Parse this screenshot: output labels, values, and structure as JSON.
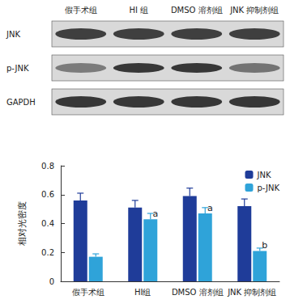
{
  "blot": {
    "columns": [
      "假手术组",
      "HI 组",
      "DMSO 溶剂组",
      "JNK 抑制剂组"
    ],
    "rows": [
      "JNK",
      "p-JNK",
      "GAPDH"
    ]
  },
  "chart_data": {
    "type": "bar",
    "y_label": "相对光密度",
    "categories": [
      "假手术组",
      "HI组",
      "DMSO 溶剂组",
      "JNK 抑制剂组"
    ],
    "series": [
      {
        "name": "JNK",
        "color": "#1f3c99",
        "values": [
          0.56,
          0.51,
          0.59,
          0.52
        ],
        "errors": [
          0.05,
          0.05,
          0.055,
          0.05
        ]
      },
      {
        "name": "p-JNK",
        "color": "#2fa3d9",
        "values": [
          0.17,
          0.43,
          0.47,
          0.21
        ],
        "errors": [
          0.02,
          0.04,
          0.04,
          0.02
        ]
      }
    ],
    "annotations": [
      {
        "series": "p-JNK",
        "category": "HI组",
        "text": "a"
      },
      {
        "series": "p-JNK",
        "category": "DMSO 溶剂组",
        "text": "a"
      },
      {
        "series": "p-JNK",
        "category": "JNK 抑制剂组",
        "text": "b"
      }
    ],
    "ylim": [
      0,
      0.8
    ],
    "yticks": [
      0,
      0.2,
      0.4,
      0.6,
      0.8
    ],
    "grid": false,
    "legend": "top-right"
  }
}
